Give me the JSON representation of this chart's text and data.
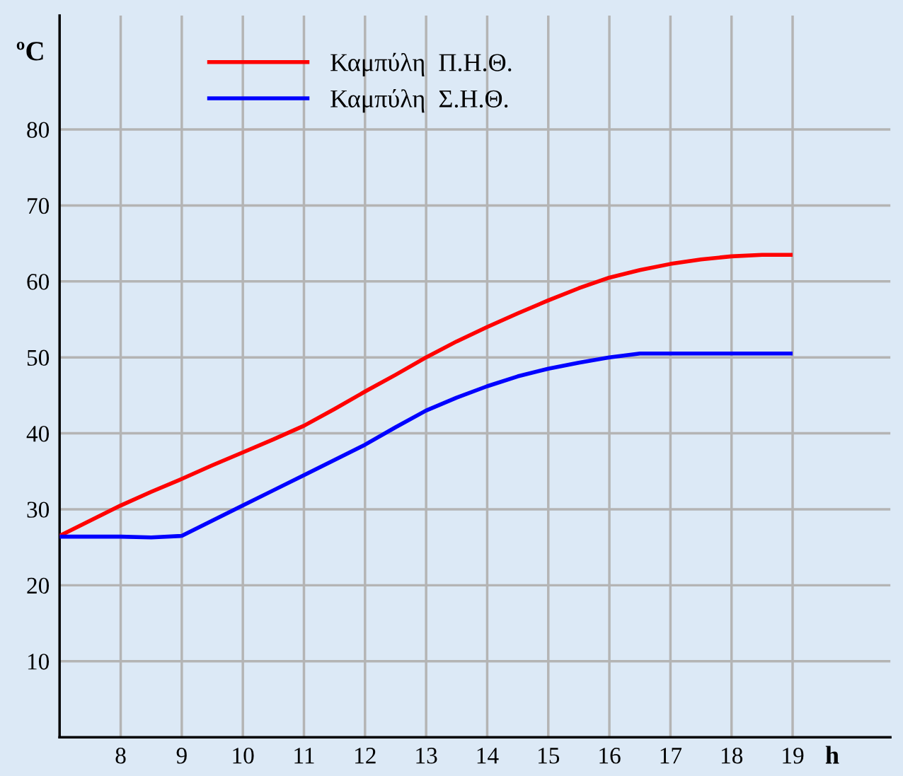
{
  "chart_data": {
    "type": "line",
    "xlabel": "h",
    "ylabel": "ºC",
    "x": [
      7,
      7.5,
      8,
      8.5,
      9,
      9.5,
      10,
      10.5,
      11,
      11.5,
      12,
      12.5,
      13,
      13.5,
      14,
      14.5,
      15,
      15.5,
      16,
      16.5,
      17,
      17.5,
      18,
      18.5,
      19
    ],
    "series": [
      {
        "name": "Καμπύλη  Π.Η.Θ.",
        "color": "#ff0000",
        "values": [
          26.5,
          28.5,
          30.5,
          32.3,
          34,
          35.8,
          37.5,
          39.2,
          41,
          43.2,
          45.5,
          47.7,
          50,
          52.1,
          54,
          55.8,
          57.5,
          59.1,
          60.5,
          61.5,
          62.3,
          62.9,
          63.3,
          63.5,
          63.5
        ]
      },
      {
        "name": "Καμπύλη  Σ.Η.Θ.",
        "color": "#0000ff",
        "values": [
          26.4,
          26.4,
          26.4,
          26.3,
          26.5,
          28.5,
          30.5,
          32.5,
          34.5,
          36.5,
          38.5,
          40.8,
          43,
          44.7,
          46.2,
          47.5,
          48.5,
          49.3,
          50,
          50.5,
          50.5,
          50.5,
          50.5,
          50.5,
          50.5
        ]
      }
    ],
    "xlim": [
      7,
      20.6
    ],
    "ylim": [
      0,
      95
    ],
    "xticks": [
      8,
      9,
      10,
      11,
      12,
      13,
      14,
      15,
      16,
      17,
      18,
      19
    ],
    "yticks": [
      10,
      20,
      30,
      40,
      50,
      60,
      70,
      80
    ],
    "grid": true,
    "legend": "top left",
    "line_style": "solid",
    "marker": "none"
  }
}
